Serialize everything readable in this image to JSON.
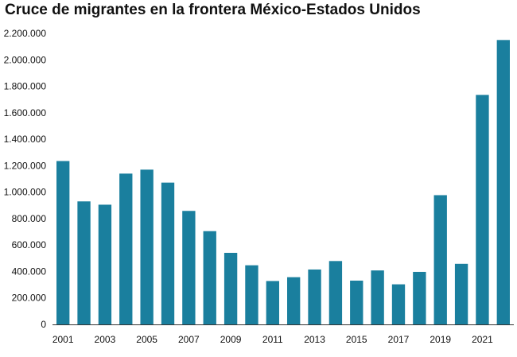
{
  "chart_data": {
    "type": "bar",
    "title": "Cruce de migrantes en la frontera México-Estados Unidos",
    "xlabel": "",
    "ylabel": "",
    "ylim": [
      0,
      2200000
    ],
    "yticks": [
      0,
      200000,
      400000,
      600000,
      800000,
      1000000,
      1200000,
      1400000,
      1600000,
      1800000,
      2000000,
      2200000
    ],
    "ytick_labels": [
      "0",
      "200.000",
      "400.000",
      "600.000",
      "800.000",
      "1.000.000",
      "1.200.000",
      "1.400.000",
      "1.600.000",
      "1.800.000",
      "2.000.000",
      "2.200.000"
    ],
    "categories": [
      "2001",
      "2002",
      "2003",
      "2004",
      "2005",
      "2006",
      "2007",
      "2008",
      "2009",
      "2010",
      "2011",
      "2012",
      "2013",
      "2014",
      "2015",
      "2016",
      "2017",
      "2018",
      "2019",
      "2020",
      "2021",
      "2022"
    ],
    "xtick_labels_shown": [
      "2001",
      "2003",
      "2005",
      "2007",
      "2009",
      "2011",
      "2013",
      "2015",
      "2017",
      "2019",
      "2021"
    ],
    "values": [
      1235000,
      930000,
      905000,
      1140000,
      1170000,
      1072000,
      858000,
      705000,
      541000,
      447000,
      328000,
      357000,
      415000,
      479000,
      331000,
      408000,
      303000,
      397000,
      977000,
      458000,
      1735000,
      2150000
    ],
    "bar_color": "#1a7f9e",
    "grid": false,
    "legend": "none"
  }
}
